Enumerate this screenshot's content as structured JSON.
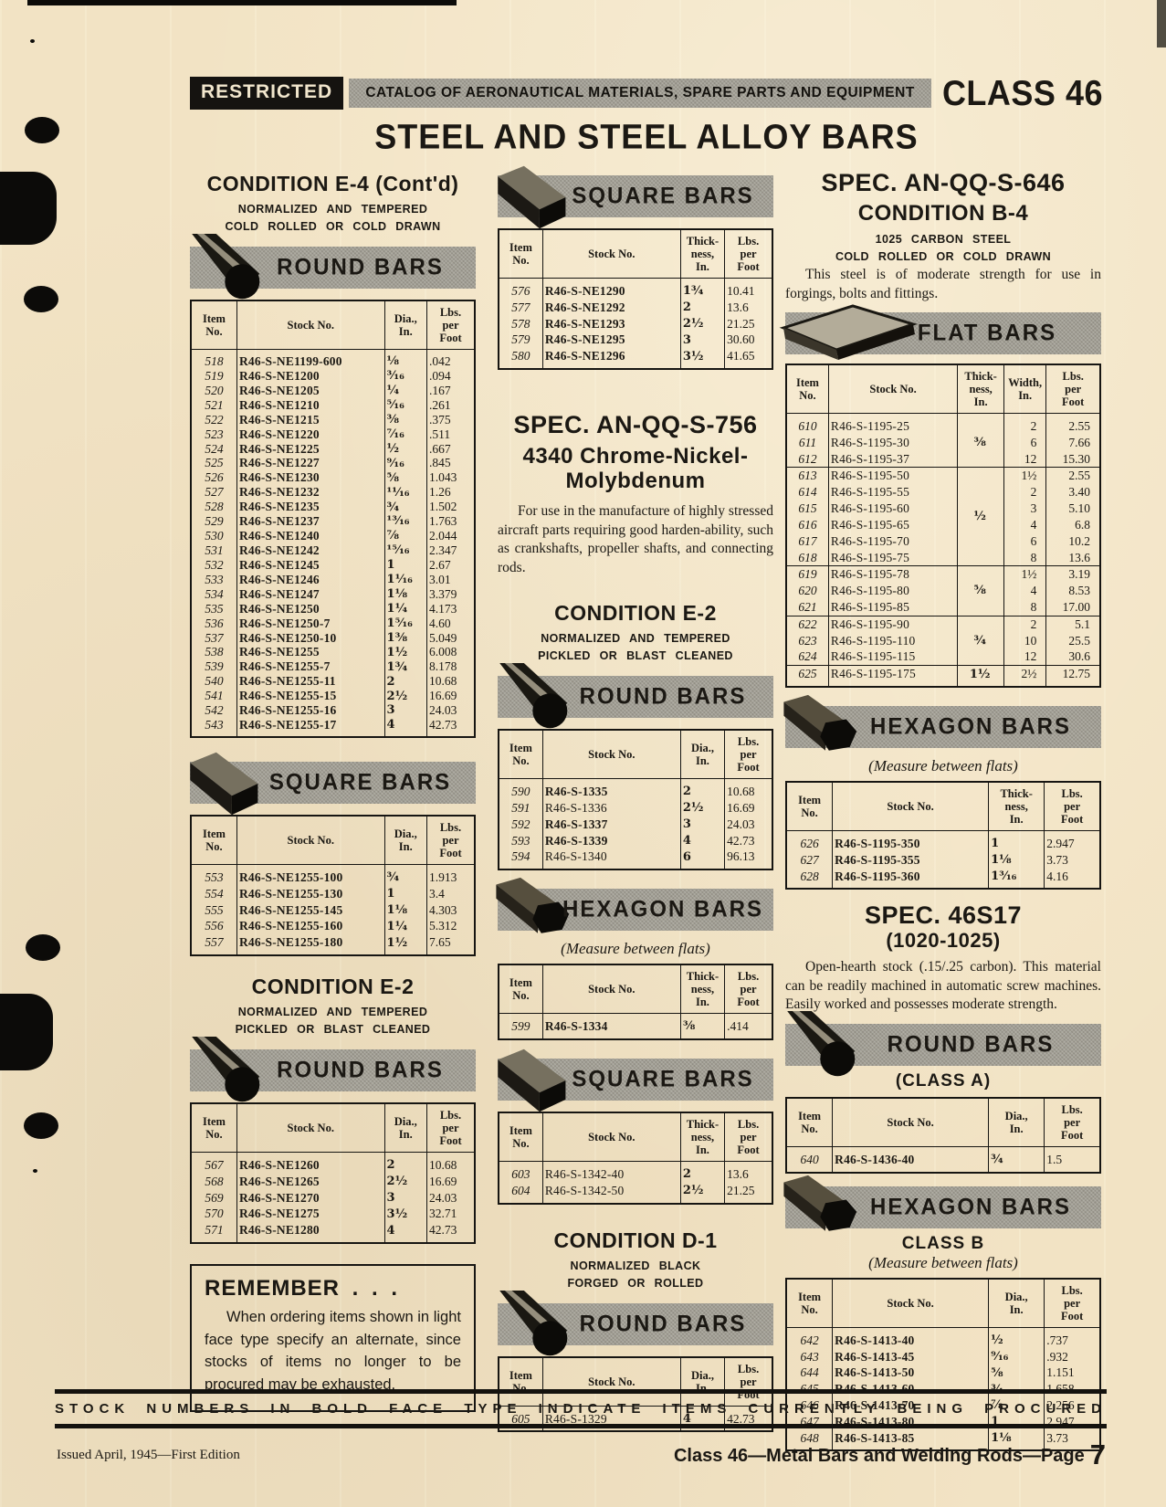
{
  "header": {
    "restricted": "RESTRICTED",
    "catalog": "CATALOG OF AERONAUTICAL MATERIALS, SPARE PARTS AND EQUIPMENT",
    "class_label": "CLASS 46"
  },
  "title": "STEEL AND STEEL ALLOY BARS",
  "left": {
    "cond_e4_title": "CONDITION E-4 (Cont'd)",
    "cond_e4_sub1": "NORMALIZED AND TEMPERED",
    "cond_e4_sub2": "COLD ROLLED OR COLD DRAWN",
    "round1": {
      "banner": "ROUND BARS",
      "headers": [
        "Item\nNo.",
        "Stock No.",
        "Dia.,\nIn.",
        "Lbs.\nper\nFoot"
      ],
      "widths": [
        50,
        160,
        46,
        52
      ],
      "rows": [
        {
          "item": "518",
          "stock": "R46-S-NE1199-600",
          "dia": "⅛",
          "lbs": ".042",
          "bold": true
        },
        {
          "item": "519",
          "stock": "R46-S-NE1200",
          "dia": "³⁄₁₆",
          "lbs": ".094",
          "bold": true
        },
        {
          "item": "520",
          "stock": "R46-S-NE1205",
          "dia": "¼",
          "lbs": ".167",
          "bold": true
        },
        {
          "item": "521",
          "stock": "R46-S-NE1210",
          "dia": "⁵⁄₁₆",
          "lbs": ".261",
          "bold": true
        },
        {
          "item": "522",
          "stock": "R46-S-NE1215",
          "dia": "⅜",
          "lbs": ".375",
          "bold": true
        },
        {
          "item": "523",
          "stock": "R46-S-NE1220",
          "dia": "⁷⁄₁₆",
          "lbs": ".511",
          "bold": true
        },
        {
          "item": "524",
          "stock": "R46-S-NE1225",
          "dia": "½",
          "lbs": ".667",
          "bold": true
        },
        {
          "item": "525",
          "stock": "R46-S-NE1227",
          "dia": "⁹⁄₁₆",
          "lbs": ".845",
          "bold": true
        },
        {
          "item": "526",
          "stock": "R46-S-NE1230",
          "dia": "⅝",
          "lbs": "1.043",
          "bold": true
        },
        {
          "item": "527",
          "stock": "R46-S-NE1232",
          "dia": "¹¹⁄₁₆",
          "lbs": "1.26",
          "bold": true
        },
        {
          "item": "528",
          "stock": "R46-S-NE1235",
          "dia": "¾",
          "lbs": "1.502",
          "bold": true
        },
        {
          "item": "529",
          "stock": "R46-S-NE1237",
          "dia": "¹³⁄₁₆",
          "lbs": "1.763",
          "bold": true
        },
        {
          "item": "530",
          "stock": "R46-S-NE1240",
          "dia": "⅞",
          "lbs": "2.044",
          "bold": true
        },
        {
          "item": "531",
          "stock": "R46-S-NE1242",
          "dia": "¹⁵⁄₁₆",
          "lbs": "2.347",
          "bold": true
        },
        {
          "item": "532",
          "stock": "R46-S-NE1245",
          "dia": "1",
          "lbs": "2.67",
          "bold": true
        },
        {
          "item": "533",
          "stock": "R46-S-NE1246",
          "dia": "1¹⁄₁₆",
          "lbs": "3.01",
          "bold": true
        },
        {
          "item": "534",
          "stock": "R46-S-NE1247",
          "dia": "1⅛",
          "lbs": "3.379",
          "bold": true
        },
        {
          "item": "535",
          "stock": "R46-S-NE1250",
          "dia": "1¼",
          "lbs": "4.173",
          "bold": true
        },
        {
          "item": "536",
          "stock": "R46-S-NE1250-7",
          "dia": "1⁵⁄₁₆",
          "lbs": "4.60",
          "bold": true
        },
        {
          "item": "537",
          "stock": "R46-S-NE1250-10",
          "dia": "1⅜",
          "lbs": "5.049",
          "bold": true
        },
        {
          "item": "538",
          "stock": "R46-S-NE1255",
          "dia": "1½",
          "lbs": "6.008",
          "bold": true
        },
        {
          "item": "539",
          "stock": "R46-S-NE1255-7",
          "dia": "1¾",
          "lbs": "8.178",
          "bold": true
        },
        {
          "item": "540",
          "stock": "R46-S-NE1255-11",
          "dia": "2",
          "lbs": "10.68",
          "bold": true
        },
        {
          "item": "541",
          "stock": "R46-S-NE1255-15",
          "dia": "2½",
          "lbs": "16.69",
          "bold": true
        },
        {
          "item": "542",
          "stock": "R46-S-NE1255-16",
          "dia": "3",
          "lbs": "24.03",
          "bold": true
        },
        {
          "item": "543",
          "stock": "R46-S-NE1255-17",
          "dia": "4",
          "lbs": "42.73",
          "bold": true
        }
      ]
    },
    "square": {
      "banner": "SQUARE BARS",
      "headers": [
        "Item\nNo.",
        "Stock No.",
        "Dia.,\nIn.",
        "Lbs.\nper\nFoot"
      ],
      "widths": [
        50,
        160,
        46,
        52
      ],
      "rows": [
        {
          "item": "553",
          "stock": "R46-S-NE1255-100",
          "dia": "¾",
          "lbs": "1.913",
          "bold": true
        },
        {
          "item": "554",
          "stock": "R46-S-NE1255-130",
          "dia": "1",
          "lbs": "3.4",
          "bold": true
        },
        {
          "item": "555",
          "stock": "R46-S-NE1255-145",
          "dia": "1⅛",
          "lbs": "4.303",
          "bold": true
        },
        {
          "item": "556",
          "stock": "R46-S-NE1255-160",
          "dia": "1¼",
          "lbs": "5.312",
          "bold": true
        },
        {
          "item": "557",
          "stock": "R46-S-NE1255-180",
          "dia": "1½",
          "lbs": "7.65",
          "bold": true
        }
      ]
    },
    "cond_e2_title": "CONDITION E-2",
    "cond_e2_sub1": "NORMALIZED AND TEMPERED",
    "cond_e2_sub2": "PICKLED OR BLAST CLEANED",
    "round2": {
      "banner": "ROUND BARS",
      "headers": [
        "Item\nNo.",
        "Stock No.",
        "Dia.,\nIn.",
        "Lbs.\nper\nFoot"
      ],
      "widths": [
        50,
        160,
        46,
        52
      ],
      "rows": [
        {
          "item": "567",
          "stock": "R46-S-NE1260",
          "dia": "2",
          "lbs": "10.68",
          "bold": true
        },
        {
          "item": "568",
          "stock": "R46-S-NE1265",
          "dia": "2½",
          "lbs": "16.69",
          "bold": true
        },
        {
          "item": "569",
          "stock": "R46-S-NE1270",
          "dia": "3",
          "lbs": "24.03",
          "bold": true
        },
        {
          "item": "570",
          "stock": "R46-S-NE1275",
          "dia": "3½",
          "lbs": "32.71",
          "bold": true
        },
        {
          "item": "571",
          "stock": "R46-S-NE1280",
          "dia": "4",
          "lbs": "42.73",
          "bold": true
        }
      ]
    },
    "remember_title": "REMEMBER . . .",
    "remember_body": "When ordering items shown in light face type specify an alternate, since stocks of items no longer to be procured may be exhausted."
  },
  "middle": {
    "square1": {
      "banner": "SQUARE BARS",
      "headers": [
        "Item\nNo.",
        "Stock No.",
        "Thick-\nness,\nIn.",
        "Lbs.\nper\nFoot"
      ],
      "widths": [
        48,
        150,
        48,
        52
      ],
      "rows": [
        {
          "item": "576",
          "stock": "R46-S-NE1290",
          "dia": "1¾",
          "lbs": "10.41",
          "bold": true
        },
        {
          "item": "577",
          "stock": "R46-S-NE1292",
          "dia": "2",
          "lbs": "13.6",
          "bold": true
        },
        {
          "item": "578",
          "stock": "R46-S-NE1293",
          "dia": "2½",
          "lbs": "21.25",
          "bold": true
        },
        {
          "item": "579",
          "stock": "R46-S-NE1295",
          "dia": "3",
          "lbs": "30.60",
          "bold": true
        },
        {
          "item": "580",
          "stock": "R46-S-NE1296",
          "dia": "3½",
          "lbs": "41.65",
          "bold": true
        }
      ]
    },
    "spec756_title": "SPEC. AN-QQ-S-756",
    "spec756_sub": "4340 Chrome-Nickel-Molybdenum",
    "spec756_para": "For use in the manufacture of highly stressed aircraft parts requiring good harden-ability, such as crankshafts, propeller shafts, and connecting rods.",
    "cond_e2_title": "CONDITION E-2",
    "cond_e2_sub1": "NORMALIZED AND TEMPERED",
    "cond_e2_sub2": "PICKLED OR BLAST CLEANED",
    "round": {
      "banner": "ROUND BARS",
      "headers": [
        "Item\nNo.",
        "Stock No.",
        "Dia.,\nIn.",
        "Lbs.\nper\nFoot"
      ],
      "widths": [
        48,
        150,
        48,
        52
      ],
      "rows": [
        {
          "item": "590",
          "stock": "R46-S-1335",
          "dia": "2",
          "lbs": "10.68",
          "bold": true
        },
        {
          "item": "591",
          "stock": "R46-S-1336",
          "dia": "2½",
          "lbs": "16.69",
          "bold": false
        },
        {
          "item": "592",
          "stock": "R46-S-1337",
          "dia": "3",
          "lbs": "24.03",
          "bold": true
        },
        {
          "item": "593",
          "stock": "R46-S-1339",
          "dia": "4",
          "lbs": "42.73",
          "bold": true
        },
        {
          "item": "594",
          "stock": "R46-S-1340",
          "dia": "6",
          "lbs": "96.13",
          "bold": false
        }
      ]
    },
    "hex": {
      "banner": "HEXAGON BARS",
      "measure": "(Measure between flats)",
      "headers": [
        "Item\nNo.",
        "Stock No.",
        "Thick-\nness,\nIn.",
        "Lbs.\nper\nFoot"
      ],
      "widths": [
        48,
        150,
        48,
        52
      ],
      "rows": [
        {
          "item": "599",
          "stock": "R46-S-1334",
          "dia": "⅜",
          "lbs": ".414",
          "bold": true
        }
      ]
    },
    "square2": {
      "banner": "SQUARE BARS",
      "headers": [
        "Item\nNo.",
        "Stock No.",
        "Thick-\nness,\nIn.",
        "Lbs.\nper\nFoot"
      ],
      "widths": [
        48,
        150,
        48,
        52
      ],
      "rows": [
        {
          "item": "603",
          "stock": "R46-S-1342-40",
          "dia": "2",
          "lbs": "13.6",
          "bold": false
        },
        {
          "item": "604",
          "stock": "R46-S-1342-50",
          "dia": "2½",
          "lbs": "21.25",
          "bold": false
        }
      ]
    },
    "cond_d1_title": "CONDITION D-1",
    "cond_d1_sub1": "NORMALIZED BLACK",
    "cond_d1_sub2": "FORGED OR ROLLED",
    "round_d1": {
      "banner": "ROUND BARS",
      "headers": [
        "Item\nNo.",
        "Stock No.",
        "Dia.,\nIn.",
        "Lbs.\nper\nFoot"
      ],
      "widths": [
        48,
        150,
        48,
        52
      ],
      "rows": [
        {
          "item": "605",
          "stock": "R46-S-1329",
          "dia": "4",
          "lbs": "42.73",
          "bold": false
        }
      ]
    }
  },
  "right": {
    "spec646_title": "SPEC. AN-QQ-S-646",
    "cond_b4_title": "CONDITION B-4",
    "cond_b4_sub1": "1025 CARBON STEEL",
    "cond_b4_sub2": "COLD ROLLED OR COLD DRAWN",
    "cond_b4_para": "This steel is of moderate strength for use in forgings, bolts and fittings.",
    "flat": {
      "banner": "FLAT BARS",
      "headers": [
        "Item\nNo.",
        "Stock No.",
        "Thick-\nness,\nIn.",
        "Width,\nIn.",
        "Lbs.\nper\nFoot"
      ],
      "widths": [
        44,
        134,
        48,
        44,
        56
      ],
      "groups": [
        {
          "thickness": "⅜",
          "rows": [
            {
              "item": "610",
              "stock": "R46-S-1195-25",
              "width": "2",
              "lbs": "2.55",
              "bold": false
            },
            {
              "item": "611",
              "stock": "R46-S-1195-30",
              "width": "6",
              "lbs": "7.66",
              "bold": false
            },
            {
              "item": "612",
              "stock": "R46-S-1195-37",
              "width": "12",
              "lbs": "15.30",
              "bold": false
            }
          ]
        },
        {
          "thickness": "½",
          "rows": [
            {
              "item": "613",
              "stock": "R46-S-1195-50",
              "width": "1½",
              "lbs": "2.55",
              "bold": false
            },
            {
              "item": "614",
              "stock": "R46-S-1195-55",
              "width": "2",
              "lbs": "3.40",
              "bold": false
            },
            {
              "item": "615",
              "stock": "R46-S-1195-60",
              "width": "3",
              "lbs": "5.10",
              "bold": false
            },
            {
              "item": "616",
              "stock": "R46-S-1195-65",
              "width": "4",
              "lbs": "6.8",
              "bold": false
            },
            {
              "item": "617",
              "stock": "R46-S-1195-70",
              "width": "6",
              "lbs": "10.2",
              "bold": false
            },
            {
              "item": "618",
              "stock": "R46-S-1195-75",
              "width": "8",
              "lbs": "13.6",
              "bold": false
            }
          ]
        },
        {
          "thickness": "⅝",
          "rows": [
            {
              "item": "619",
              "stock": "R46-S-1195-78",
              "width": "1½",
              "lbs": "3.19",
              "bold": false
            },
            {
              "item": "620",
              "stock": "R46-S-1195-80",
              "width": "4",
              "lbs": "8.53",
              "bold": false
            },
            {
              "item": "621",
              "stock": "R46-S-1195-85",
              "width": "8",
              "lbs": "17.00",
              "bold": false
            }
          ]
        },
        {
          "thickness": "¾",
          "rows": [
            {
              "item": "622",
              "stock": "R46-S-1195-90",
              "width": "2",
              "lbs": "5.1",
              "bold": false
            },
            {
              "item": "623",
              "stock": "R46-S-1195-110",
              "width": "10",
              "lbs": "25.5",
              "bold": false
            },
            {
              "item": "624",
              "stock": "R46-S-1195-115",
              "width": "12",
              "lbs": "30.6",
              "bold": false
            }
          ]
        },
        {
          "thickness": "1½",
          "rows": [
            {
              "item": "625",
              "stock": "R46-S-1195-175",
              "width": "2½",
              "lbs": "12.75",
              "bold": false
            }
          ]
        }
      ]
    },
    "hex1": {
      "banner": "HEXAGON BARS",
      "measure": "(Measure between flats)",
      "headers": [
        "Item\nNo.",
        "Stock No.",
        "Thick-\nness,\nIn.",
        "Lbs.\nper\nFoot"
      ],
      "widths": [
        48,
        162,
        58,
        58
      ],
      "rows": [
        {
          "item": "626",
          "stock": "R46-S-1195-350",
          "dia": "1",
          "lbs": "2.947",
          "bold": true
        },
        {
          "item": "627",
          "stock": "R46-S-1195-355",
          "dia": "1⅛",
          "lbs": "3.73",
          "bold": true
        },
        {
          "item": "628",
          "stock": "R46-S-1195-360",
          "dia": "1³⁄₁₆",
          "lbs": "4.16",
          "bold": true
        }
      ]
    },
    "spec46s17_title": "SPEC. 46S17",
    "spec46s17_sub": "(1020-1025)",
    "spec46s17_para": "Open-hearth stock (.15/.25 carbon). This material can be readily machined in automatic screw machines.  Easily worked and possesses moderate strength.",
    "roundA": {
      "banner": "ROUND BARS",
      "class_label": "(CLASS A)",
      "headers": [
        "Item\nNo.",
        "Stock No.",
        "Dia.,\nIn.",
        "Lbs.\nper\nFoot"
      ],
      "widths": [
        48,
        162,
        58,
        58
      ],
      "rows": [
        {
          "item": "640",
          "stock": "R46-S-1436-40",
          "dia": "¾",
          "lbs": "1.5",
          "bold": true
        }
      ]
    },
    "hexB": {
      "banner": "HEXAGON BARS",
      "class_label": "CLASS B",
      "measure": "(Measure between flats)",
      "headers": [
        "Item\nNo.",
        "Stock No.",
        "Dia.,\nIn.",
        "Lbs.\nper\nFoot"
      ],
      "widths": [
        48,
        162,
        58,
        58
      ],
      "rows": [
        {
          "item": "642",
          "stock": "R46-S-1413-40",
          "dia": "½",
          "lbs": ".737",
          "bold": true
        },
        {
          "item": "643",
          "stock": "R46-S-1413-45",
          "dia": "⁹⁄₁₆",
          "lbs": ".932",
          "bold": true
        },
        {
          "item": "644",
          "stock": "R46-S-1413-50",
          "dia": "⅝",
          "lbs": "1.151",
          "bold": true
        },
        {
          "item": "645",
          "stock": "R46-S-1413-60",
          "dia": "¾",
          "lbs": "1.658",
          "bold": true
        },
        {
          "item": "646",
          "stock": "R46-S-1413-70",
          "dia": "⅞",
          "lbs": "2.256",
          "bold": true
        },
        {
          "item": "647",
          "stock": "R46-S-1413-80",
          "dia": "1",
          "lbs": "2.947",
          "bold": true
        },
        {
          "item": "648",
          "stock": "R46-S-1413-85",
          "dia": "1⅛",
          "lbs": "3.73",
          "bold": true
        }
      ]
    }
  },
  "footer": {
    "procured_note": "STOCK NUMBERS IN BOLD FACE TYPE INDICATE ITEMS CURRENTLY BEING PROCURED",
    "issued": "Issued April, 1945—First Edition",
    "class_line": "Class 46—Metal Bars and Welding Rods—Page",
    "page_number": "7"
  }
}
